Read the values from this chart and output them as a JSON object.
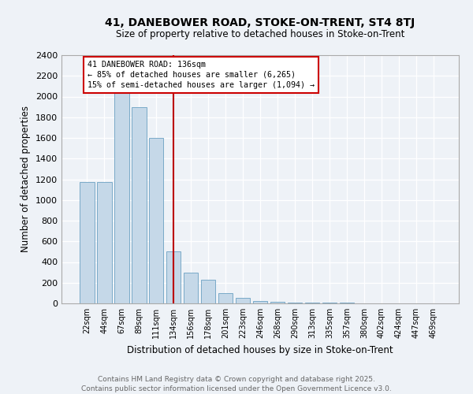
{
  "title": "41, DANEBOWER ROAD, STOKE-ON-TRENT, ST4 8TJ",
  "subtitle": "Size of property relative to detached houses in Stoke-on-Trent",
  "xlabel": "Distribution of detached houses by size in Stoke-on-Trent",
  "ylabel": "Number of detached properties",
  "categories": [
    "22sqm",
    "44sqm",
    "67sqm",
    "89sqm",
    "111sqm",
    "134sqm",
    "156sqm",
    "178sqm",
    "201sqm",
    "223sqm",
    "246sqm",
    "268sqm",
    "290sqm",
    "313sqm",
    "335sqm",
    "357sqm",
    "380sqm",
    "402sqm",
    "424sqm",
    "447sqm",
    "469sqm"
  ],
  "values": [
    1175,
    1175,
    2150,
    1900,
    1600,
    500,
    300,
    225,
    100,
    50,
    25,
    15,
    10,
    5,
    5,
    5,
    3,
    3,
    3,
    3,
    3
  ],
  "bar_color": "#c5d8e8",
  "bar_edgecolor": "#7aaac8",
  "vline_index": 5,
  "annotation_text": "41 DANEBOWER ROAD: 136sqm\n← 85% of detached houses are smaller (6,265)\n15% of semi-detached houses are larger (1,094) →",
  "annotation_box_color": "#ffffff",
  "annotation_box_edgecolor": "#cc0000",
  "vline_color": "#bb0000",
  "ylim": [
    0,
    2400
  ],
  "yticks": [
    0,
    200,
    400,
    600,
    800,
    1000,
    1200,
    1400,
    1600,
    1800,
    2000,
    2200,
    2400
  ],
  "footer_line1": "Contains HM Land Registry data © Crown copyright and database right 2025.",
  "footer_line2": "Contains public sector information licensed under the Open Government Licence v3.0.",
  "background_color": "#eef2f7",
  "grid_color": "#ffffff"
}
